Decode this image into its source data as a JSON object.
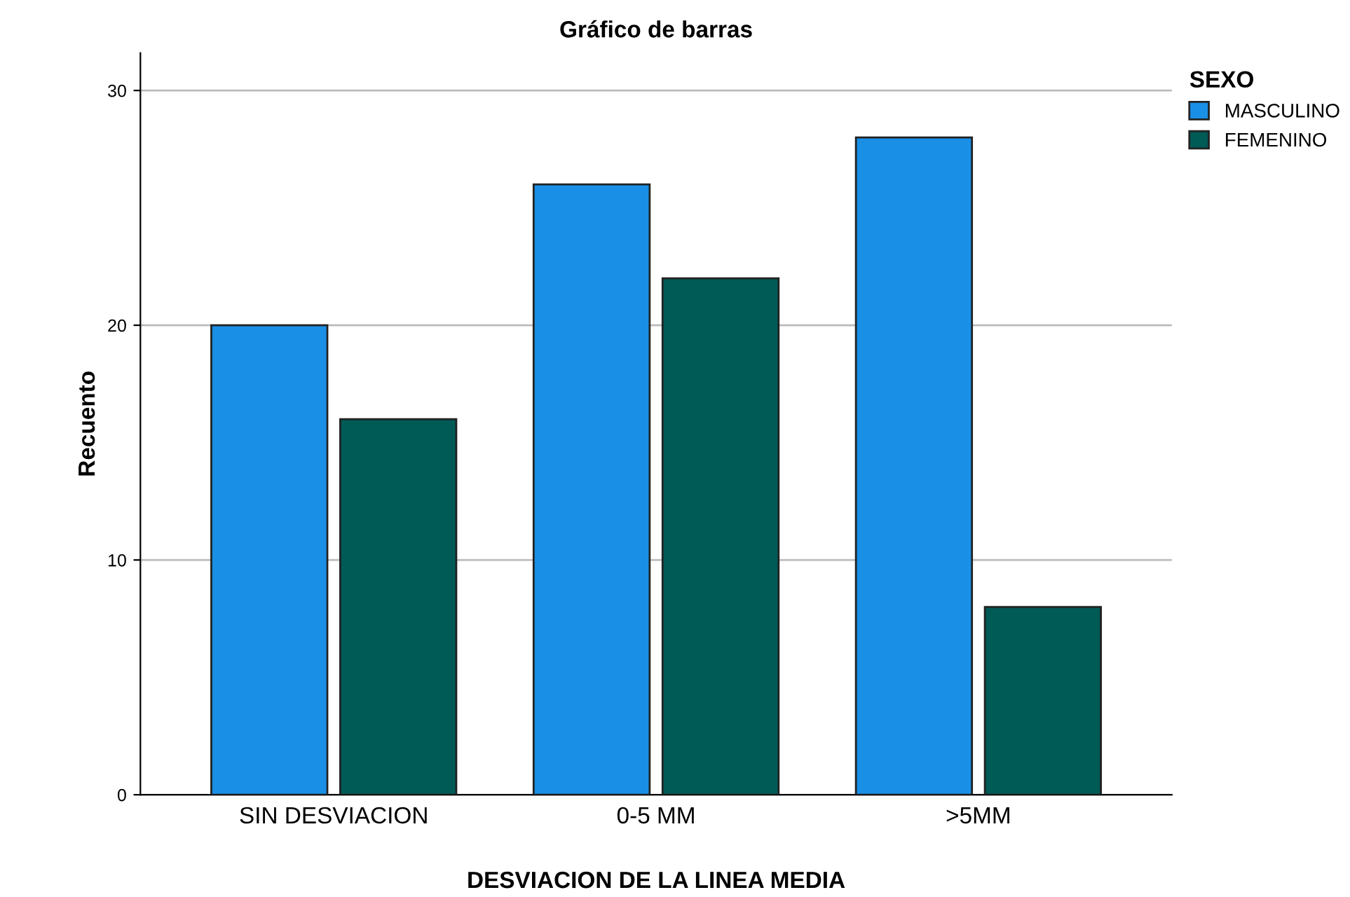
{
  "chart_data": {
    "type": "bar",
    "title": "Gráfico de barras",
    "xlabel": "DESVIACION DE LA LINEA MEDIA",
    "ylabel": "Recuento",
    "legend_title": "SEXO",
    "categories": [
      "SIN DESVIACION",
      "0-5 MM",
      ">5MM"
    ],
    "series": [
      {
        "name": "MASCULINO",
        "color": "#1a8fe6",
        "values": [
          20,
          26,
          28
        ]
      },
      {
        "name": "FEMENINO",
        "color": "#005a56",
        "values": [
          16,
          22,
          8
        ]
      }
    ],
    "ylim": [
      0,
      31.6
    ],
    "yticks": [
      0,
      10,
      20,
      30
    ],
    "grid": "y",
    "legend": "top right"
  }
}
